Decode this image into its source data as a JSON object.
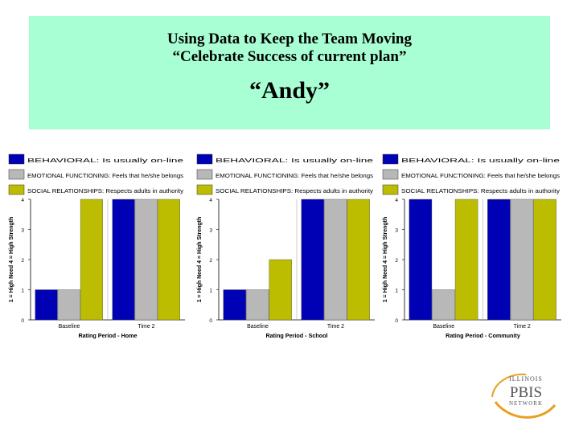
{
  "slide": {
    "title_line1": "Using Data to Keep the Team Moving",
    "title_line2": "“Celebrate Success of current plan”",
    "title_line3": "“Andy”"
  },
  "logo": {
    "line1": "ILLINOIS",
    "line2": "PBIS",
    "line3": "NETWORK"
  },
  "colors": {
    "title_bg": "#a8ffd4",
    "behavioral": "#0000b4",
    "emotional": "#b8b8b8",
    "social": "#bcbc00"
  },
  "chart_data": [
    {
      "type": "bar",
      "categories": [
        "Baseline",
        "Time 2"
      ],
      "series": [
        {
          "name": "BEHAVIORAL: Is usually on-line",
          "values": [
            1,
            4
          ]
        },
        {
          "name": "EMOTIONAL FUNCTIONING: Feels that he/she belongs",
          "values": [
            1,
            4
          ]
        },
        {
          "name": "SOCIAL RELATIONSHIPS: Respects adults in authority",
          "values": [
            4,
            4
          ]
        }
      ],
      "xlabel": "Rating Period - Home",
      "ylabel": "1 = High Need 4 = High Strength",
      "ylim": [
        0,
        4
      ],
      "yticks": [
        "0",
        "1",
        "2",
        "3",
        "4"
      ],
      "legend": "top"
    },
    {
      "type": "bar",
      "categories": [
        "Baseline",
        "Time 2"
      ],
      "series": [
        {
          "name": "BEHAVIORAL: Is usually on-line",
          "values": [
            1,
            4
          ]
        },
        {
          "name": "EMOTIONAL FUNCTIONING: Feels that he/she belongs",
          "values": [
            1,
            4
          ]
        },
        {
          "name": "SOCIAL RELATIONSHIPS: Respects adults in authority",
          "values": [
            2,
            4
          ]
        }
      ],
      "xlabel": "Rating Period - School",
      "ylabel": "1 = High Need 4 = High Strength",
      "ylim": [
        0,
        4
      ],
      "yticks": [
        "0",
        "1",
        "2",
        "3",
        "4"
      ],
      "legend": "top"
    },
    {
      "type": "bar",
      "categories": [
        "Baseline",
        "Time 2"
      ],
      "series": [
        {
          "name": "BEHAVIORAL: Is usually on-line",
          "values": [
            4,
            4
          ]
        },
        {
          "name": "EMOTIONAL FUNCTIONING: Feels that he/she belongs",
          "values": [
            1,
            4
          ]
        },
        {
          "name": "SOCIAL RELATIONSHIPS: Respects adults in authority",
          "values": [
            4,
            4
          ]
        }
      ],
      "xlabel": "Rating Period - Community",
      "ylabel": "1 = High Need 4 = High Strength",
      "ylim": [
        0,
        4
      ],
      "yticks": [
        "0",
        "1",
        "2",
        "3",
        "4"
      ],
      "legend": "top"
    }
  ]
}
